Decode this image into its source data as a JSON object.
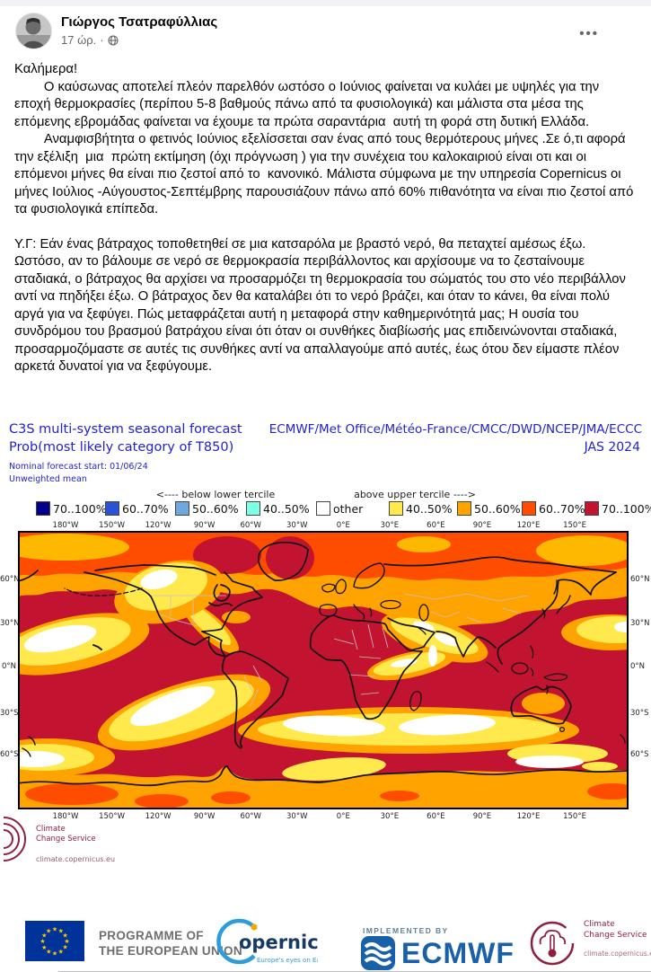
{
  "post": {
    "author": "Γιώργος Τσατραφύλλιας",
    "timestamp": "17 ώρ.",
    "meta_separator": "·",
    "audience": "public",
    "more_options_label": "•••",
    "paragraphs": [
      "Καλήμερα!",
      "        Ο καύσωνας αποτελεί πλεόν παρελθόν ωστόσο ο Ιούνιος φαίνεται να κυλάει με υψηλές για την εποχή θερμοκρασίες (περίπου 5-8 βαθμούς πάνω από τα φυσιολογικά) και μάλιστα στα μέσα της επόμενης εβρομάδας φαίνεται να έχουμε τα πρώτα σαραντάρια  αυτή τη φορά στη δυτική Ελλάδα.",
      "        Αναμφισβήτητα ο φετινός Ιούνιος εξελίσσεται σαν ένας από τους θερμότερους μήνες .Σε ό,τι αφορά την εξέλιξη  μια  πρώτη εκτίμηση (όχι πρόγνωση ) για την συνέχεια του καλοκαιριού είναι οτι και οι επόμενοι μήνες θα είναι πιο ζεστοί από το  κανονικό. Μάλιστα σύμφωνα με την υπηρεσία Copernicus οι μήνες Ιούλιος -Αύγουστος-Σεπτέμβρης παρουσιάζουν πάνω από 60% πιθανότητα να είναι πιο ζεστοί από τα φυσιολογικά επίπεδα.",
      "Υ.Γ: Εάν ένας βάτραχος τοποθετηθεί σε μια κατσαρόλα με βραστό νερό, θα πεταχτεί αμέσως έξω. Ωστόσο, αν το βάλουμε σε νερό σε θερμοκρασία περιβάλλοντος και αρχίσουμε να το ζεσταίνουμε σταδιακά, ο βάτραχος θα αρχίσει να προσαρμόζει τη θερμοκρασία του σώματός του στο νέο περιβάλλον αντί να πηδήξει έξω. Ο βάτραχος δεν θα καταλάβει ότι το νερό βράζει, και όταν το κάνει, θα είναι πολύ αργά για να ξεφύγει. Πώς μεταφράζεται αυτή η μεταφορά στην καθημερινότητά μας; Η ουσία του συνδρόμου του βρασμού βατράχου είναι ότι όταν οι συνθήκες διαβίωσής μας επιδεινώνονται σταδιακά, προσαρμοζόμαστε σε αυτές τις συνθήκες αντί να απαλλαγούμε από αυτές, έως ότου δεν είμαστε πλέον αρκετά δυνατοί για να ξεφύγουμε."
    ]
  },
  "forecast_chart": {
    "title_line1": "C3S multi-system seasonal forecast",
    "title_line2": "Prob(most likely category of T850)",
    "organisations": "ECMWF/Met Office/Météo-France/CMCC/DWD/NCEP/JMA/ECCC",
    "season": "JAS 2024",
    "nominal_start": "Nominal forecast start: 01/06/24",
    "mean_type": "Unweighted mean",
    "legend": {
      "below_header": "<---- below lower tercile",
      "above_header": "above upper tercile ---->",
      "items": [
        {
          "label": "70..100%",
          "color": "#00008B"
        },
        {
          "label": "60..70%",
          "color": "#2B52D4"
        },
        {
          "label": "50..60%",
          "color": "#6FA8DC"
        },
        {
          "label": "40..50%",
          "color": "#7FFFE4"
        },
        {
          "label": "other",
          "color": "#FFFFFF"
        },
        {
          "label": "40..50%",
          "color": "#FFE94D"
        },
        {
          "label": "50..60%",
          "color": "#FFA300"
        },
        {
          "label": "60..70%",
          "color": "#FF4D00"
        },
        {
          "label": "70..100%",
          "color": "#C21330"
        }
      ]
    },
    "axes": {
      "longitude_labels": [
        "180°W",
        "150°W",
        "120°W",
        "90°W",
        "60°W",
        "30°W",
        "0°E",
        "30°E",
        "60°E",
        "90°E",
        "120°E",
        "150°E"
      ],
      "latitude_labels": [
        "60°N",
        "30°N",
        "0°N",
        "30°S",
        "60°S"
      ]
    },
    "branding": {
      "line1": "Climate",
      "line2": "Change Service",
      "url": "climate.copernicus.eu"
    }
  },
  "chart_data": {
    "type": "heatmap",
    "title": "C3S multi-system seasonal forecast — Prob(most likely category of T850), JAS 2024",
    "legend_categories_below": [
      "70..100%",
      "60..70%",
      "50..60%",
      "40..50%",
      "other"
    ],
    "legend_categories_above": [
      "40..50%",
      "50..60%",
      "60..70%",
      "70..100%"
    ],
    "x_ticks": [
      "180°W",
      "150°W",
      "120°W",
      "90°W",
      "60°W",
      "30°W",
      "0°E",
      "30°E",
      "60°E",
      "90°E",
      "120°E",
      "150°E"
    ],
    "y_ticks": [
      "60°N",
      "30°N",
      "0°N",
      "30°S",
      "60°S"
    ],
    "description": "Global map dominated by crimson (70..100% above upper tercile); orange-red and orange bands over the Arctic and Antarctica; yellow/white low-probability patches over Alaska, the central North Pacific, the Arabian Peninsula/Horn of Africa, the far-west Pacific near 30°N, the Southeast Pacific and a Southern-Ocean band near 45–60°S."
  },
  "footer": {
    "eu_label_line1": "PROGRAMME OF",
    "eu_label_line2": "THE EUROPEAN UNION",
    "copernicus_text": "opernicus",
    "copernicus_sub": "Europe's eyes on Earth",
    "implemented_by": "IMPLEMENTED BY",
    "ecmwf": "ECMWF",
    "ccs_line1": "Climate",
    "ccs_line2": "Change Service",
    "ccs_url": "climate.copernicus.eu"
  }
}
